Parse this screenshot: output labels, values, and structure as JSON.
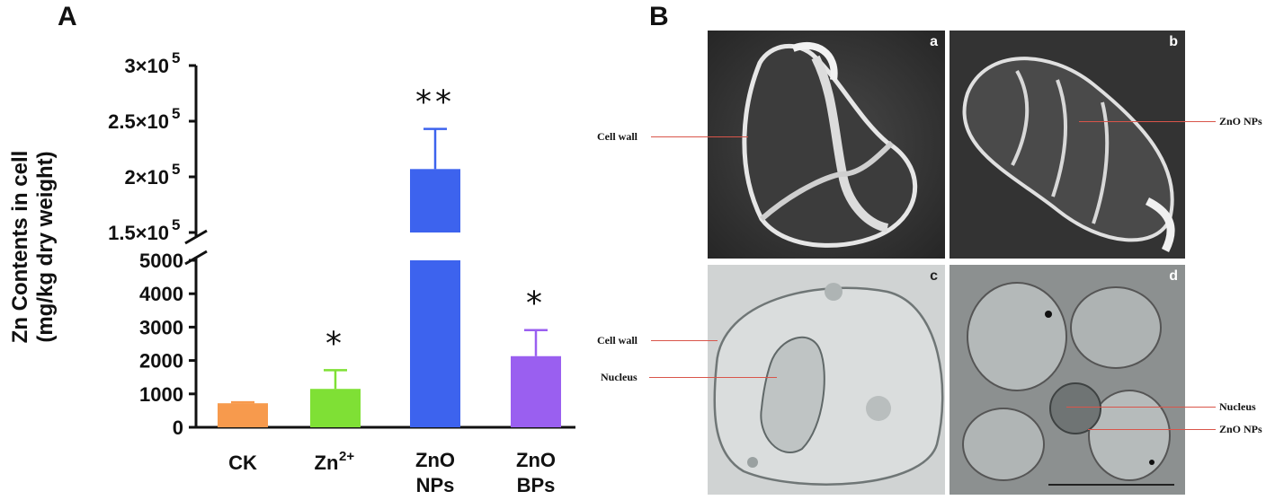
{
  "panel_a": {
    "label": "A",
    "chart_data": {
      "type": "bar",
      "categories": [
        "CK",
        "Zn²⁺",
        "ZnO NPs",
        "ZnO BPs"
      ],
      "category_lines": [
        [
          "CK"
        ],
        [
          "Zn",
          "2+"
        ],
        [
          "ZnO",
          "NPs"
        ],
        [
          "ZnO",
          "BPs"
        ]
      ],
      "values": [
        720,
        1150,
        207000,
        2130
      ],
      "errors": [
        30,
        560,
        36000,
        780
      ],
      "significance": [
        "",
        "*",
        "**",
        "*"
      ],
      "colors": [
        "#f79a4d",
        "#7fe035",
        "#3d63ee",
        "#9a5ff0"
      ],
      "ylabel_lines": [
        "Zn Contents in cell",
        "(mg/kg dry weight)"
      ],
      "axis_break": [
        5000,
        150000
      ],
      "lower_ticks": [
        "0",
        "1000",
        "2000",
        "3000",
        "4000",
        "5000"
      ],
      "upper_ticks": [
        {
          "mantissa": "1.5×10",
          "exp": "5"
        },
        {
          "mantissa": "2×10",
          "exp": "5"
        },
        {
          "mantissa": "2.5×10",
          "exp": "5"
        },
        {
          "mantissa": "3×10",
          "exp": "5"
        }
      ],
      "lower_range": [
        0,
        5000
      ],
      "upper_range": [
        150000,
        300000
      ],
      "grid": false
    }
  },
  "panel_b": {
    "label": "B",
    "images": [
      {
        "letter": "a",
        "kind": "SEM micrograph"
      },
      {
        "letter": "b",
        "kind": "SEM micrograph"
      },
      {
        "letter": "c",
        "kind": "TEM micrograph"
      },
      {
        "letter": "d",
        "kind": "TEM micrograph"
      }
    ],
    "annotations": {
      "a_cell_wall": "Cell wall",
      "b_zno": "ZnO NPs",
      "c_cell_wall": "Cell wall",
      "c_nucleus": "Nucleus",
      "d_nucleus": "Nucleus",
      "d_zno": "ZnO NPs"
    },
    "annotation_line_color": "#d9554a"
  }
}
